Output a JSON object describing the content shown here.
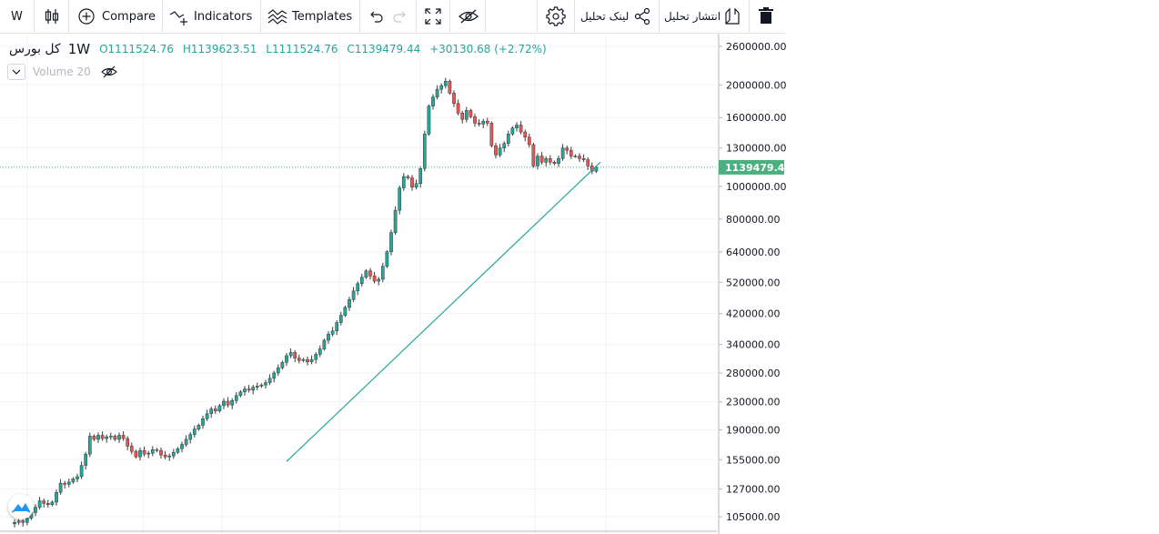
{
  "toolbar": {
    "interval": "W",
    "compare": "Compare",
    "indicators": "Indicators",
    "templates": "Templates",
    "link_analysis": "لینک تحلیل",
    "publish_analysis": "انتشار تحلیل"
  },
  "legend": {
    "symbol": "کل بورس",
    "resolution": "1W",
    "open": "O1111524.76",
    "high": "H1139623.51",
    "low": "L1111524.76",
    "close": "C1139479.44",
    "change": "+30130.68 (+2.72%)",
    "volume": "Volume 20"
  },
  "colors": {
    "up": "#26a69a",
    "down": "#ef5350",
    "last_price": "#4caf80",
    "trendline": "#26a69a"
  },
  "icons": [
    "chart-type-icon",
    "plus-circle-icon",
    "indicators-icon",
    "templates-icon",
    "undo-icon",
    "redo-icon",
    "fullscreen-icon",
    "eye-crossed-icon",
    "gear-icon",
    "share-icon",
    "publish-icon",
    "trash-icon",
    "chevron-down-icon",
    "logo-icon"
  ],
  "chart_data": {
    "type": "candlestick",
    "scale": "log",
    "y_ticks": [
      2600000,
      2000000,
      1600000,
      1300000,
      1000000,
      800000,
      640000,
      520000,
      420000,
      340000,
      280000,
      230000,
      190000,
      155000,
      127000,
      105000
    ],
    "y_tick_labels": [
      "2600000.00",
      "2000000.00",
      "1600000.00",
      "1300000.00",
      "1000000.00",
      "800000.00",
      "640000.00",
      "520000.00",
      "420000.00",
      "340000.00",
      "280000.00",
      "230000.00",
      "190000.00",
      "155000.00",
      "127000.00",
      "105000.00"
    ],
    "last_price": 1139479.44,
    "last_price_label": "1139479.44",
    "ylim": [
      95000,
      2800000
    ],
    "closes": [
      100000,
      101000,
      102000,
      101000,
      104000,
      108000,
      112000,
      117000,
      115000,
      114000,
      116000,
      124000,
      132000,
      131000,
      133000,
      136000,
      138000,
      149000,
      161000,
      182000,
      178000,
      183000,
      179000,
      181000,
      182000,
      178000,
      183000,
      179000,
      170000,
      164000,
      158000,
      165000,
      161000,
      162000,
      166000,
      165000,
      160000,
      158000,
      159000,
      163000,
      167000,
      172000,
      178000,
      184000,
      191000,
      196000,
      205000,
      212000,
      219000,
      216000,
      224000,
      231000,
      225000,
      232000,
      240000,
      246000,
      251000,
      249000,
      254000,
      256000,
      258000,
      262000,
      270000,
      280000,
      290000,
      301000,
      315000,
      322000,
      310000,
      305000,
      307000,
      302000,
      307000,
      318000,
      330000,
      350000,
      365000,
      373000,
      395000,
      415000,
      438000,
      462000,
      490000,
      515000,
      538000,
      562000,
      543000,
      524000,
      531000,
      580000,
      640000,
      730000,
      850000,
      990000,
      1070000,
      1060000,
      995000,
      1020000,
      1130000,
      1430000,
      1730000,
      1840000,
      1940000,
      1990000,
      2050000,
      1890000,
      1760000,
      1650000,
      1580000,
      1680000,
      1610000,
      1540000,
      1530000,
      1560000,
      1540000,
      1320000,
      1240000,
      1300000,
      1340000,
      1430000,
      1490000,
      1520000,
      1450000,
      1400000,
      1330000,
      1150000,
      1230000,
      1180000,
      1210000,
      1180000,
      1170000,
      1210000,
      1300000,
      1280000,
      1230000,
      1230000,
      1210000,
      1200000,
      1150000,
      1109349,
      1139479
    ],
    "trendline": [
      {
        "week": 65,
        "value": 153000
      },
      {
        "week": 140,
        "value": 1180000
      }
    ]
  }
}
